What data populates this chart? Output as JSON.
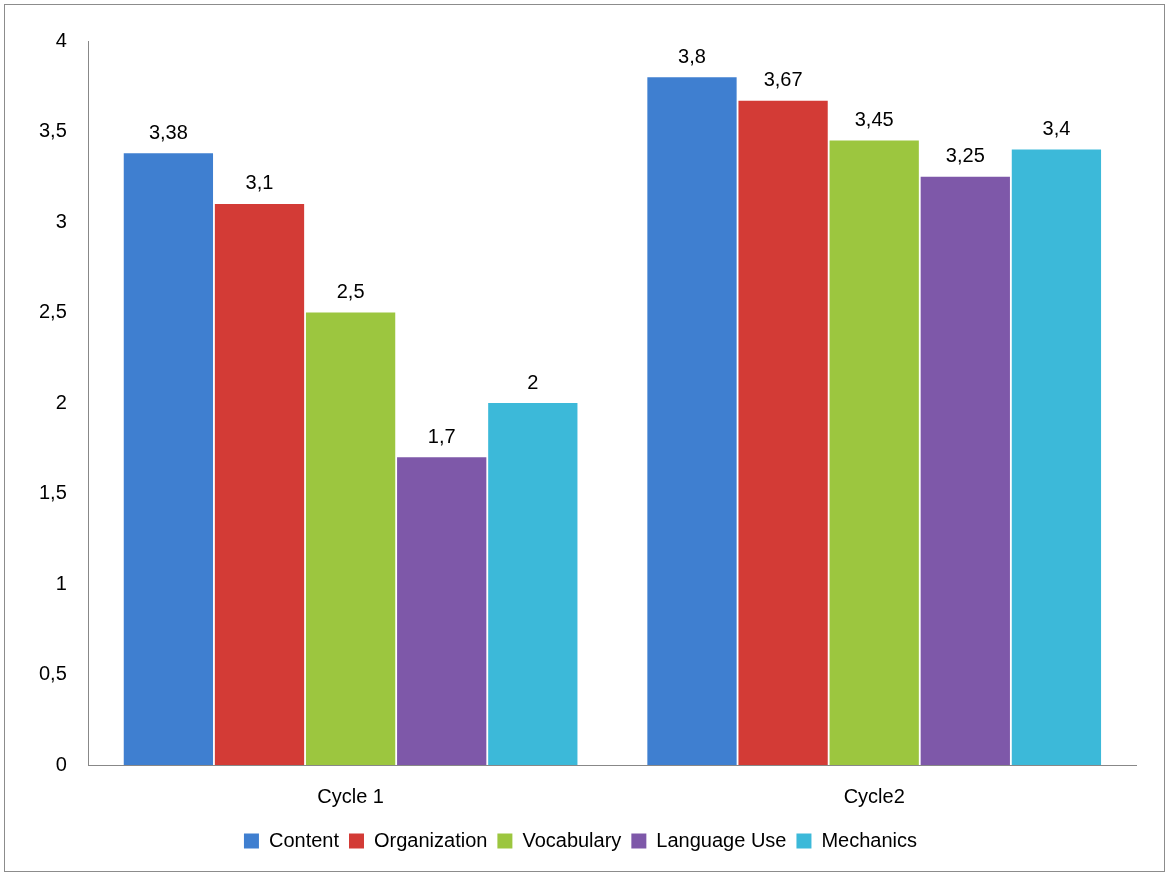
{
  "chart_data": {
    "type": "bar",
    "categories": [
      "Cycle 1",
      "Cycle2"
    ],
    "series": [
      {
        "name": "Content",
        "color": "#3f7fd0",
        "values": [
          3.38,
          3.8
        ],
        "value_labels": [
          "3,38",
          "3,8"
        ]
      },
      {
        "name": "Organization",
        "color": "#d33b36",
        "values": [
          3.1,
          3.67
        ],
        "value_labels": [
          "3,1",
          "3,67"
        ]
      },
      {
        "name": "Vocabulary",
        "color": "#9cc63f",
        "values": [
          2.5,
          3.45
        ],
        "value_labels": [
          "2,5",
          "3,45"
        ]
      },
      {
        "name": "Language Use",
        "color": "#7e58a9",
        "values": [
          1.7,
          3.25
        ],
        "value_labels": [
          "1,7",
          "3,25"
        ]
      },
      {
        "name": "Mechanics",
        "color": "#3cb9d9",
        "values": [
          2,
          3.4
        ],
        "value_labels": [
          "2",
          "3,4"
        ]
      }
    ],
    "ylim": [
      0,
      4
    ],
    "yticks": [
      0,
      {
        "value": 0.5,
        "label": "0,5"
      },
      1,
      {
        "value": 1.5,
        "label": "1,5"
      },
      2,
      {
        "value": 2.5,
        "label": "2,5"
      },
      3,
      {
        "value": 3.5,
        "label": "3,5"
      },
      4
    ],
    "grid": false,
    "legend": "bottom"
  }
}
